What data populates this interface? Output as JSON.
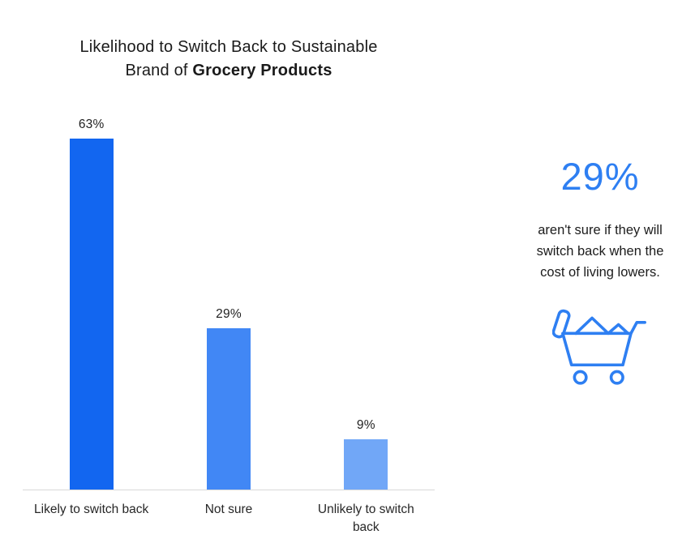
{
  "chart_data": {
    "type": "bar",
    "title": {
      "line1": "Likelihood to Switch Back to Sustainable",
      "line2_prefix": "Brand of ",
      "line2_bold": "Grocery Products"
    },
    "categories": [
      "Likely to switch back",
      "Not sure",
      "Unlikely to switch back"
    ],
    "values": [
      63,
      29,
      9
    ],
    "value_labels": [
      "63%",
      "29%",
      "9%"
    ],
    "bar_colors": [
      "#1266f0",
      "#4187f5",
      "#71a7f7"
    ],
    "ylim": [
      0,
      65
    ],
    "grid": false,
    "legend": false,
    "xlabel": "",
    "ylabel": ""
  },
  "highlight": {
    "stat": "29%",
    "caption": "aren't sure if they will switch back when the cost of living lowers.",
    "accent_color": "#2e7ff2",
    "icon": "grocery-cart-icon"
  }
}
